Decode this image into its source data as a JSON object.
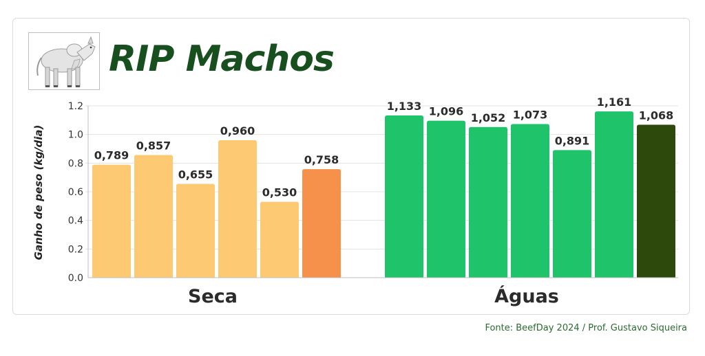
{
  "title": "RIP Machos",
  "source": "Fonte: BeefDay 2024 / Prof. Gustavo Siqueira",
  "logo": {
    "icon": "nelore-bull-icon"
  },
  "chart_data": {
    "type": "bar",
    "ylabel": "Ganho de peso (kg/dia)",
    "ylim": [
      0,
      1.2
    ],
    "yticks": [
      "0.0",
      "0.2",
      "0.4",
      "0.6",
      "0.8",
      "1.0",
      "1.2"
    ],
    "ytick_values": [
      0,
      0.2,
      0.4,
      0.6,
      0.8,
      1.0,
      1.2
    ],
    "grid": true,
    "groups": [
      {
        "name": "Seca",
        "values": [
          0.789,
          0.857,
          0.655,
          0.96,
          0.53,
          0.758
        ],
        "labels": [
          "0,789",
          "0,857",
          "0,655",
          "0,960",
          "0,530",
          "0,758"
        ],
        "colors": [
          "#fdca73",
          "#fdca73",
          "#fdca73",
          "#fdca73",
          "#fdca73",
          "#f5914b"
        ]
      },
      {
        "name": "Águas",
        "values": [
          1.133,
          1.096,
          1.052,
          1.073,
          0.891,
          1.161,
          1.068
        ],
        "labels": [
          "1,133",
          "1,096",
          "1,052",
          "1,073",
          "0,891",
          "1,161",
          "1,068"
        ],
        "colors": [
          "#1fc46a",
          "#1fc46a",
          "#1fc46a",
          "#1fc46a",
          "#1fc46a",
          "#1fc46a",
          "#2d4a0c"
        ]
      }
    ]
  }
}
